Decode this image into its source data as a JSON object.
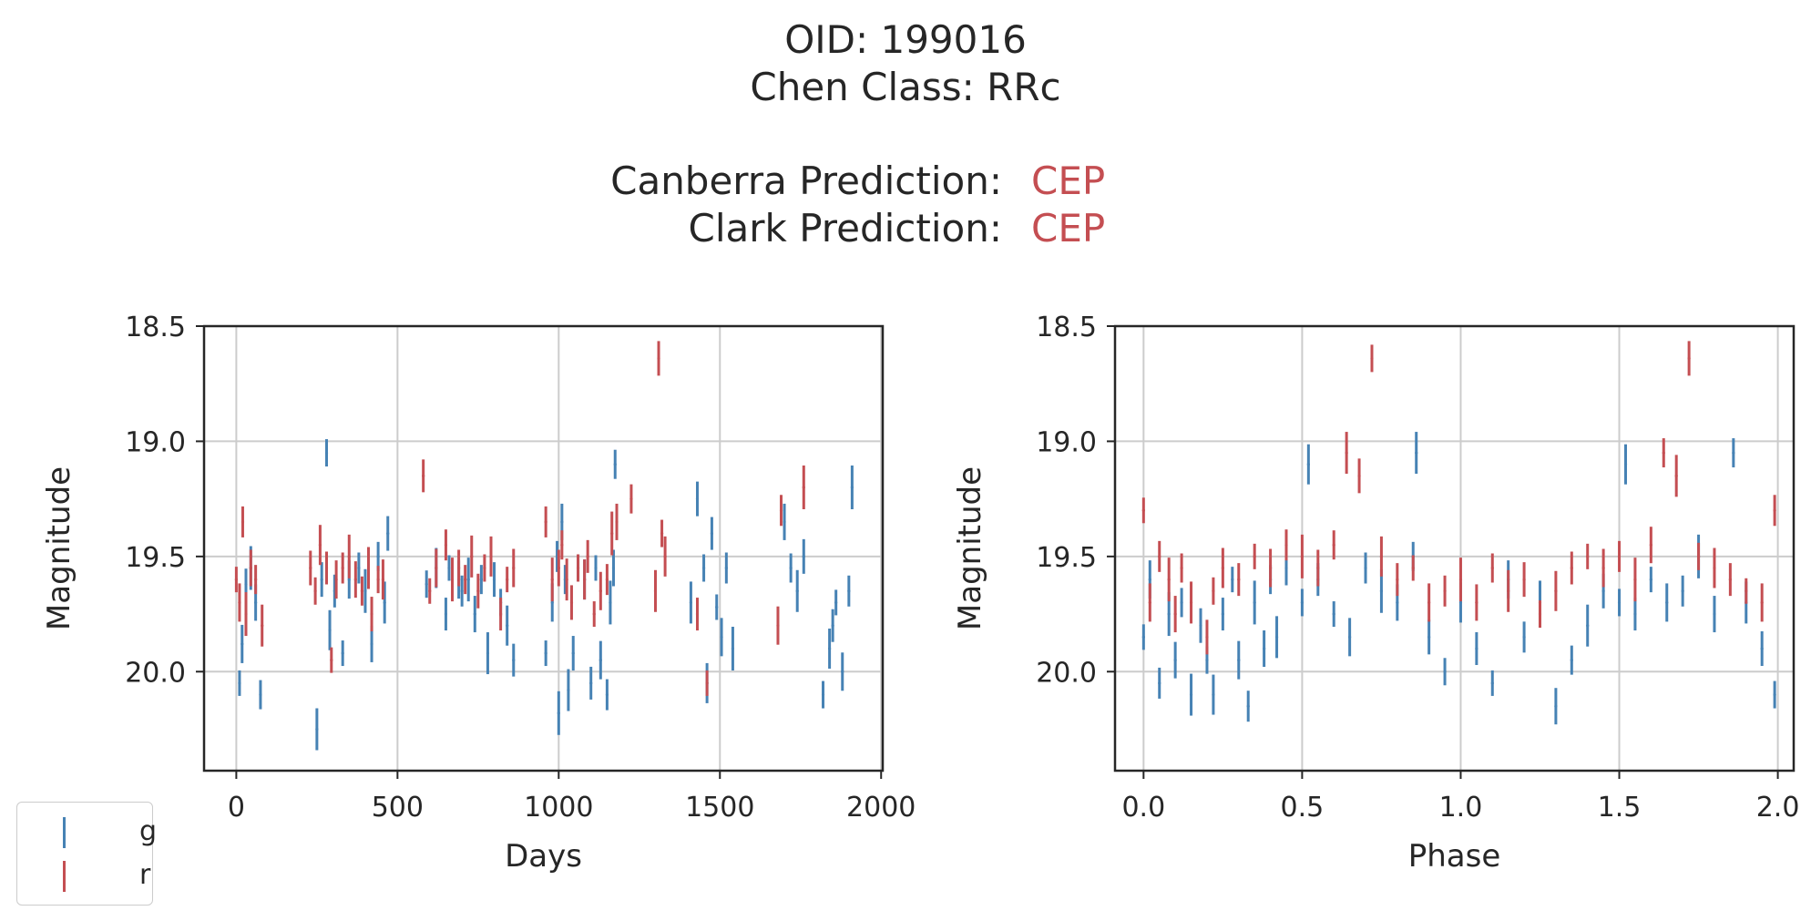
{
  "header": {
    "oid_line": "OID: 199016",
    "class_line": "Chen Class: RRc",
    "predictions": [
      {
        "label": "Canberra Prediction:",
        "value": "CEP"
      },
      {
        "label": "Clark Prediction:",
        "value": "CEP"
      }
    ]
  },
  "colors": {
    "g": "#4682b4",
    "r": "#c44e52",
    "prediction": "#c44e52",
    "grid": "#cccccc",
    "axis": "#262626"
  },
  "legend": {
    "placement": "bottom-left",
    "items": [
      {
        "label": "g",
        "color": "#4682b4"
      },
      {
        "label": "r",
        "color": "#c44e52"
      }
    ]
  },
  "chart_data": [
    {
      "type": "scatter",
      "xlabel": "Days",
      "ylabel": "Magnitude",
      "xlim": [
        -100,
        2005
      ],
      "ylim": [
        20.43,
        18.5
      ],
      "y_inverted": true,
      "grid": true,
      "xticks": [
        "0",
        "500",
        "1000",
        "1500",
        "2000"
      ],
      "yticks": [
        "18.5",
        "19.0",
        "19.5",
        "20.0"
      ],
      "series": [
        {
          "name": "g",
          "points": [
            [
              10,
              20.05
            ],
            [
              18,
              19.88
            ],
            [
              30,
              19.62
            ],
            [
              45,
              19.55
            ],
            [
              60,
              19.7
            ],
            [
              75,
              20.1
            ],
            [
              250,
              20.25
            ],
            [
              265,
              19.6
            ],
            [
              280,
              19.05
            ],
            [
              290,
              19.82
            ],
            [
              305,
              19.65
            ],
            [
              330,
              19.92
            ],
            [
              350,
              19.6
            ],
            [
              380,
              19.55
            ],
            [
              400,
              19.65
            ],
            [
              420,
              19.88
            ],
            [
              440,
              19.5
            ],
            [
              460,
              19.7
            ],
            [
              470,
              19.4
            ],
            [
              590,
              19.62
            ],
            [
              620,
              19.55
            ],
            [
              650,
              19.75
            ],
            [
              660,
              19.55
            ],
            [
              690,
              19.6
            ],
            [
              700,
              19.65
            ],
            [
              720,
              19.6
            ],
            [
              740,
              19.75
            ],
            [
              760,
              19.6
            ],
            [
              780,
              19.92
            ],
            [
              800,
              19.6
            ],
            [
              820,
              19.7
            ],
            [
              840,
              19.8
            ],
            [
              860,
              19.95
            ],
            [
              960,
              19.92
            ],
            [
              980,
              19.7
            ],
            [
              995,
              19.5
            ],
            [
              1000,
              20.18
            ],
            [
              1010,
              19.35
            ],
            [
              1020,
              19.6
            ],
            [
              1030,
              20.08
            ],
            [
              1045,
              19.92
            ],
            [
              1060,
              19.55
            ],
            [
              1080,
              19.6
            ],
            [
              1100,
              20.05
            ],
            [
              1115,
              19.55
            ],
            [
              1130,
              19.95
            ],
            [
              1150,
              20.1
            ],
            [
              1160,
              19.7
            ],
            [
              1170,
              19.55
            ],
            [
              1175,
              19.1
            ],
            [
              1410,
              19.7
            ],
            [
              1430,
              19.25
            ],
            [
              1450,
              19.55
            ],
            [
              1460,
              20.05
            ],
            [
              1475,
              19.4
            ],
            [
              1490,
              19.72
            ],
            [
              1505,
              19.85
            ],
            [
              1520,
              19.55
            ],
            [
              1540,
              19.9
            ],
            [
              1700,
              19.35
            ],
            [
              1720,
              19.55
            ],
            [
              1740,
              19.65
            ],
            [
              1760,
              19.5
            ],
            [
              1820,
              20.1
            ],
            [
              1840,
              19.9
            ],
            [
              1850,
              19.8
            ],
            [
              1860,
              19.7
            ],
            [
              1880,
              20.0
            ],
            [
              1900,
              19.65
            ],
            [
              1910,
              19.2
            ]
          ]
        },
        {
          "name": "r",
          "points": [
            [
              0,
              19.6
            ],
            [
              10,
              19.7
            ],
            [
              20,
              19.35
            ],
            [
              30,
              19.75
            ],
            [
              45,
              19.55
            ],
            [
              60,
              19.6
            ],
            [
              80,
              19.8
            ],
            [
              230,
              19.55
            ],
            [
              245,
              19.65
            ],
            [
              260,
              19.45
            ],
            [
              280,
              19.55
            ],
            [
              295,
              19.95
            ],
            [
              310,
              19.6
            ],
            [
              330,
              19.55
            ],
            [
              350,
              19.5
            ],
            [
              370,
              19.6
            ],
            [
              390,
              19.65
            ],
            [
              410,
              19.55
            ],
            [
              420,
              19.75
            ],
            [
              440,
              19.6
            ],
            [
              455,
              19.6
            ],
            [
              580,
              19.15
            ],
            [
              600,
              19.65
            ],
            [
              620,
              19.55
            ],
            [
              650,
              19.45
            ],
            [
              670,
              19.6
            ],
            [
              690,
              19.55
            ],
            [
              710,
              19.6
            ],
            [
              730,
              19.5
            ],
            [
              750,
              19.65
            ],
            [
              770,
              19.55
            ],
            [
              790,
              19.5
            ],
            [
              820,
              19.75
            ],
            [
              840,
              19.6
            ],
            [
              860,
              19.55
            ],
            [
              960,
              19.35
            ],
            [
              980,
              19.6
            ],
            [
              1000,
              19.55
            ],
            [
              1010,
              19.45
            ],
            [
              1025,
              19.6
            ],
            [
              1040,
              19.7
            ],
            [
              1060,
              19.55
            ],
            [
              1080,
              19.6
            ],
            [
              1090,
              19.5
            ],
            [
              1110,
              19.75
            ],
            [
              1130,
              19.65
            ],
            [
              1150,
              19.6
            ],
            [
              1165,
              19.4
            ],
            [
              1180,
              19.35
            ],
            [
              1225,
              19.25
            ],
            [
              1300,
              19.65
            ],
            [
              1310,
              18.64
            ],
            [
              1320,
              19.4
            ],
            [
              1330,
              19.5
            ],
            [
              1430,
              19.75
            ],
            [
              1460,
              20.05
            ],
            [
              1680,
              19.8
            ],
            [
              1690,
              19.3
            ],
            [
              1760,
              19.2
            ]
          ]
        }
      ]
    },
    {
      "type": "scatter",
      "xlabel": "Phase",
      "ylabel": "Magnitude",
      "xlim": [
        -0.09,
        2.05
      ],
      "ylim": [
        20.43,
        18.5
      ],
      "y_inverted": true,
      "grid": true,
      "xticks": [
        "0.0",
        "0.5",
        "1.0",
        "1.5",
        "2.0"
      ],
      "yticks": [
        "18.5",
        "19.0",
        "19.5",
        "20.0"
      ],
      "series": [
        {
          "name": "g",
          "points": [
            [
              0.0,
              19.85
            ],
            [
              0.02,
              19.6
            ],
            [
              0.05,
              20.05
            ],
            [
              0.08,
              19.75
            ],
            [
              0.1,
              19.95
            ],
            [
              0.12,
              19.7
            ],
            [
              0.15,
              20.1
            ],
            [
              0.18,
              19.8
            ],
            [
              0.2,
              19.95
            ],
            [
              0.22,
              20.1
            ],
            [
              0.25,
              19.75
            ],
            [
              0.28,
              19.6
            ],
            [
              0.3,
              19.95
            ],
            [
              0.33,
              20.15
            ],
            [
              0.35,
              19.7
            ],
            [
              0.38,
              19.9
            ],
            [
              0.4,
              19.6
            ],
            [
              0.42,
              19.85
            ],
            [
              0.45,
              19.55
            ],
            [
              0.5,
              19.7
            ],
            [
              0.52,
              19.1
            ],
            [
              0.55,
              19.6
            ],
            [
              0.6,
              19.75
            ],
            [
              0.65,
              19.85
            ],
            [
              0.7,
              19.55
            ],
            [
              0.75,
              19.65
            ],
            [
              0.8,
              19.7
            ],
            [
              0.85,
              19.5
            ],
            [
              0.86,
              19.05
            ],
            [
              0.9,
              19.85
            ],
            [
              0.95,
              20.0
            ],
            [
              1.0,
              19.7
            ],
            [
              1.05,
              19.9
            ],
            [
              1.1,
              20.05
            ],
            [
              1.15,
              19.6
            ],
            [
              1.2,
              19.85
            ],
            [
              1.25,
              19.7
            ],
            [
              1.3,
              20.15
            ],
            [
              1.35,
              19.95
            ],
            [
              1.4,
              19.8
            ],
            [
              1.45,
              19.65
            ],
            [
              1.5,
              19.7
            ],
            [
              1.52,
              19.1
            ],
            [
              1.55,
              19.75
            ],
            [
              1.6,
              19.6
            ],
            [
              1.65,
              19.7
            ],
            [
              1.7,
              19.65
            ],
            [
              1.75,
              19.5
            ],
            [
              1.8,
              19.75
            ],
            [
              1.86,
              19.05
            ],
            [
              1.9,
              19.7
            ],
            [
              1.95,
              19.9
            ],
            [
              1.99,
              20.1
            ]
          ]
        },
        {
          "name": "r",
          "points": [
            [
              0.0,
              19.3
            ],
            [
              0.02,
              19.7
            ],
            [
              0.05,
              19.5
            ],
            [
              0.08,
              19.6
            ],
            [
              0.1,
              19.75
            ],
            [
              0.12,
              19.55
            ],
            [
              0.15,
              19.7
            ],
            [
              0.2,
              19.85
            ],
            [
              0.22,
              19.65
            ],
            [
              0.25,
              19.55
            ],
            [
              0.3,
              19.6
            ],
            [
              0.35,
              19.5
            ],
            [
              0.4,
              19.55
            ],
            [
              0.45,
              19.45
            ],
            [
              0.5,
              19.5
            ],
            [
              0.55,
              19.55
            ],
            [
              0.6,
              19.45
            ],
            [
              0.64,
              19.05
            ],
            [
              0.68,
              19.15
            ],
            [
              0.72,
              18.64
            ],
            [
              0.75,
              19.5
            ],
            [
              0.8,
              19.6
            ],
            [
              0.85,
              19.55
            ],
            [
              0.9,
              19.7
            ],
            [
              0.95,
              19.65
            ],
            [
              1.0,
              19.6
            ],
            [
              1.05,
              19.7
            ],
            [
              1.1,
              19.55
            ],
            [
              1.15,
              19.65
            ],
            [
              1.2,
              19.6
            ],
            [
              1.25,
              19.75
            ],
            [
              1.3,
              19.65
            ],
            [
              1.35,
              19.55
            ],
            [
              1.4,
              19.5
            ],
            [
              1.45,
              19.55
            ],
            [
              1.5,
              19.5
            ],
            [
              1.55,
              19.6
            ],
            [
              1.6,
              19.45
            ],
            [
              1.64,
              19.05
            ],
            [
              1.68,
              19.15
            ],
            [
              1.72,
              18.64
            ],
            [
              1.75,
              19.5
            ],
            [
              1.8,
              19.55
            ],
            [
              1.85,
              19.6
            ],
            [
              1.9,
              19.65
            ],
            [
              1.95,
              19.7
            ],
            [
              1.99,
              19.3
            ]
          ]
        }
      ]
    }
  ]
}
